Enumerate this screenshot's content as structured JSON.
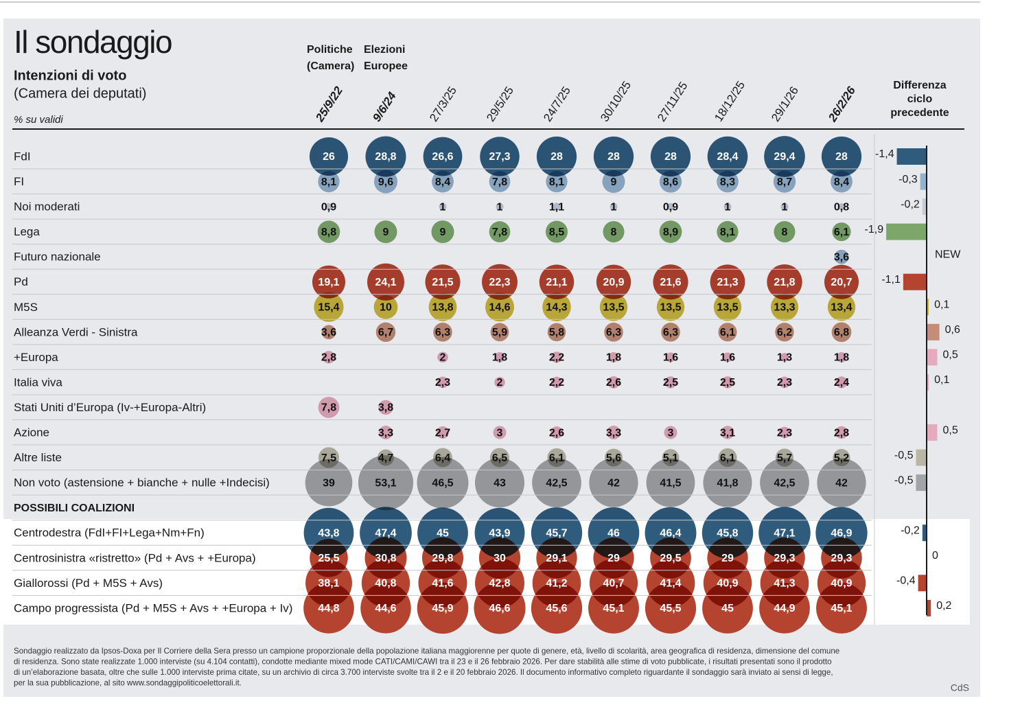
{
  "chart_data": {
    "type": "bubble_table",
    "title": "Il sondaggio",
    "subtitle": "Intenzioni di voto",
    "subtitle2": "(Camera dei deputati)",
    "unit_note": "% su validi",
    "column_notes": [
      [
        "Politiche",
        "(Camera)"
      ],
      [
        "Elezioni",
        "Europee"
      ]
    ],
    "columns": [
      "25/9/22",
      "9/6/24",
      "27/3/25",
      "29/5/25",
      "24/7/25",
      "30/10/25",
      "27/11/25",
      "18/12/25",
      "29/1/26",
      "26/2/26"
    ],
    "bold_columns": [
      0,
      1,
      9
    ],
    "diff_title": [
      "Differenza",
      "ciclo",
      "precedente"
    ],
    "xlim": [
      -2,
      2
    ],
    "rows": [
      {
        "name": "FdI",
        "color": "#2f5b7c",
        "values": [
          26,
          28.8,
          26.6,
          27.3,
          28,
          28,
          28,
          28.4,
          29.4,
          28
        ],
        "value_labels": [
          "26",
          "28,8",
          "26,6",
          "27,3",
          "28",
          "28",
          "28",
          "28,4",
          "29,4",
          "28"
        ],
        "diff": -1.4,
        "diff_label": "-1,4"
      },
      {
        "name": "FI",
        "color": "#93b1cb",
        "values": [
          8.1,
          9.6,
          8.4,
          7.8,
          8.1,
          9,
          8.6,
          8.3,
          8.7,
          8.4
        ],
        "value_labels": [
          "8,1",
          "9,6",
          "8,4",
          "7,8",
          "8,1",
          "9",
          "8,6",
          "8,3",
          "8,7",
          "8,4"
        ],
        "diff": -0.3,
        "diff_label": "-0,3"
      },
      {
        "name": "Noi moderati",
        "color": "#c3cbd6",
        "values": [
          0.9,
          null,
          1,
          1,
          1.1,
          1,
          0.9,
          1,
          1,
          0.8
        ],
        "value_labels": [
          "0,9",
          null,
          "1",
          "1",
          "1,1",
          "1",
          "0,9",
          "1",
          "1",
          "0,8"
        ],
        "diff": -0.2,
        "diff_label": "-0,2"
      },
      {
        "name": "Lega",
        "color": "#7da66b",
        "values": [
          8.8,
          9,
          9,
          7.8,
          8.5,
          8,
          8.9,
          8.1,
          8,
          6.1
        ],
        "value_labels": [
          "8,8",
          "9",
          "9",
          "7,8",
          "8,5",
          "8",
          "8,9",
          "8,1",
          "8",
          "6,1"
        ],
        "diff": -1.9,
        "diff_label": "-1,9"
      },
      {
        "name": "Futuro nazionale",
        "color": "#93b1cb",
        "values": [
          null,
          null,
          null,
          null,
          null,
          null,
          null,
          null,
          null,
          3.6
        ],
        "value_labels": [
          null,
          null,
          null,
          null,
          null,
          null,
          null,
          null,
          null,
          "3,6"
        ],
        "diff": null,
        "diff_label": "NEW"
      },
      {
        "name": "Pd",
        "color": "#b4432f",
        "values": [
          19.1,
          24.1,
          21.5,
          22.3,
          21.1,
          20.9,
          21.6,
          21.3,
          21.8,
          20.7
        ],
        "value_labels": [
          "19,1",
          "24,1",
          "21,5",
          "22,3",
          "21,1",
          "20,9",
          "21,6",
          "21,3",
          "21,8",
          "20,7"
        ],
        "diff": -1.1,
        "diff_label": "-1,1"
      },
      {
        "name": "M5S",
        "color": "#cbb63c",
        "values": [
          15.4,
          10,
          13.8,
          14.6,
          14.3,
          13.5,
          13.5,
          13.5,
          13.3,
          13.4
        ],
        "value_labels": [
          "15,4",
          "10",
          "13,8",
          "14,6",
          "14,3",
          "13,5",
          "13,5",
          "13,5",
          "13,3",
          "13,4"
        ],
        "diff": 0.1,
        "diff_label": "0,1"
      },
      {
        "name": "Alleanza Verdi - Sinistra",
        "color": "#c38d77",
        "values": [
          3.6,
          6.7,
          6.3,
          5.9,
          5.8,
          6.3,
          6.3,
          6.1,
          6.2,
          6.8
        ],
        "value_labels": [
          "3,6",
          "6,7",
          "6,3",
          "5,9",
          "5,8",
          "6,3",
          "6,3",
          "6,1",
          "6,2",
          "6,8"
        ],
        "diff": 0.6,
        "diff_label": "0,6"
      },
      {
        "name": "+Europa",
        "color": "#e5aabb",
        "values": [
          2.8,
          null,
          2,
          1.8,
          2.2,
          1.8,
          1.6,
          1.6,
          1.3,
          1.8
        ],
        "value_labels": [
          "2,8",
          null,
          "2",
          "1,8",
          "2,2",
          "1,8",
          "1,6",
          "1,6",
          "1,3",
          "1,8"
        ],
        "diff": 0.5,
        "diff_label": "0,5"
      },
      {
        "name": "Italia viva",
        "color": "#e5aabb",
        "values": [
          null,
          null,
          2.3,
          2,
          2.2,
          2.6,
          2.5,
          2.5,
          2.3,
          2.4
        ],
        "value_labels": [
          null,
          null,
          "2,3",
          "2",
          "2,2",
          "2,6",
          "2,5",
          "2,5",
          "2,3",
          "2,4"
        ],
        "diff": 0.1,
        "diff_label": "0,1"
      },
      {
        "name": "Stati Uniti d’Europa (Iv-+Europa-Altri)",
        "color": "#e5aabb",
        "values": [
          7.8,
          3.8,
          null,
          null,
          null,
          null,
          null,
          null,
          null,
          null
        ],
        "value_labels": [
          "7,8",
          "3,8",
          null,
          null,
          null,
          null,
          null,
          null,
          null,
          null
        ],
        "diff": null,
        "diff_label": null
      },
      {
        "name": "Azione",
        "color": "#e5aabb",
        "values": [
          null,
          3.3,
          2.7,
          3,
          2.6,
          3.3,
          3,
          3.1,
          2.3,
          2.8
        ],
        "value_labels": [
          null,
          "3,3",
          "2,7",
          "3",
          "2,6",
          "3,3",
          "3",
          "3,1",
          "2,3",
          "2,8"
        ],
        "diff": 0.5,
        "diff_label": "0,5"
      },
      {
        "name": "Altre liste",
        "color": "#bab6a6",
        "values": [
          7.5,
          4.7,
          6.4,
          6.5,
          6.1,
          5.6,
          5.1,
          6.1,
          5.7,
          5.2
        ],
        "value_labels": [
          "7,5",
          "4,7",
          "6,4",
          "6,5",
          "6,1",
          "5,6",
          "5,1",
          "6,1",
          "5,7",
          "5,2"
        ],
        "diff": -0.5,
        "diff_label": "-0,5"
      },
      {
        "name": "Non voto (astensione + bianche + nulle +Indecisi)",
        "color": "#a3a4a6",
        "values": [
          39,
          53.1,
          46.5,
          43,
          42.5,
          42,
          41.5,
          41.8,
          42.5,
          42
        ],
        "value_labels": [
          "39",
          "53,1",
          "46,5",
          "43",
          "42,5",
          "42",
          "41,5",
          "41,8",
          "42,5",
          "42"
        ],
        "diff": -0.5,
        "diff_label": "-0,5"
      }
    ],
    "section_title": "POSSIBILI COALIZIONI",
    "coalitions": [
      {
        "name": "Centrodestra (FdI+FI+Lega+Nm+Fn)",
        "color": "#2f5b7c",
        "values": [
          43.8,
          47.4,
          45,
          43.9,
          45.7,
          46,
          46.4,
          45.8,
          47.1,
          46.9
        ],
        "value_labels": [
          "43,8",
          "47,4",
          "45",
          "43,9",
          "45,7",
          "46",
          "46,4",
          "45,8",
          "47,1",
          "46,9"
        ],
        "diff": -0.2,
        "diff_label": "-0,2"
      },
      {
        "name": "Centrosinistra «ristretto» (Pd + Avs + +Europa)",
        "color": "#b4432f",
        "values": [
          25.5,
          30.8,
          29.8,
          30,
          29.1,
          29,
          29.5,
          29,
          29.3,
          29.3
        ],
        "value_labels": [
          "25,5",
          "30,8",
          "29,8",
          "30",
          "29,1",
          "29",
          "29,5",
          "29",
          "29,3",
          "29,3"
        ],
        "diff": 0,
        "diff_label": "0"
      },
      {
        "name": "Giallorossi (Pd + M5S + Avs)",
        "color": "#b4432f",
        "values": [
          38.1,
          40.8,
          41.6,
          42.8,
          41.2,
          40.7,
          41.4,
          40.9,
          41.3,
          40.9
        ],
        "value_labels": [
          "38,1",
          "40,8",
          "41,6",
          "42,8",
          "41,2",
          "40,7",
          "41,4",
          "40,9",
          "41,3",
          "40,9"
        ],
        "diff": -0.4,
        "diff_label": "-0,4"
      },
      {
        "name": "Campo progressista (Pd + M5S + Avs + +Europa + Iv)",
        "color": "#b4432f",
        "values": [
          44.8,
          44.6,
          45.9,
          46.6,
          45.6,
          45.1,
          45.5,
          45,
          44.9,
          45.1
        ],
        "value_labels": [
          "44,8",
          "44,6",
          "45,9",
          "46,6",
          "45,6",
          "45,1",
          "45,5",
          "45",
          "44,9",
          "45,1"
        ],
        "diff": 0.2,
        "diff_label": "0,2"
      }
    ],
    "footer": [
      "Sondaggio realizzato da Ipsos-Doxa per Il Corriere della Sera presso un campione proporzionale della popolazione italiana maggiorenne per quote di genere, età, livello di scolarità, area geografica di residenza, dimensione del comune",
      "di residenza. Sono state realizzate 1.000 interviste (su 4.104 contatti), condotte mediante mixed mode CATI/CAMI/CAWI tra il 23 e il 26 febbraio 2026. Per dare stabilità alle stime di voto pubblicate, i risultati presentati sono il prodotto",
      "di un’elaborazione basata, oltre che sulle 1.000 interviste prima citate, su un archivio di circa 3.700  interviste svolte tra il 2 e il 20 febbraio  2026. Il documento informativo completo riguardante il sondaggio sarà inviato ai sensi di legge,",
      "per la sua pubblicazione, al sito www.sondaggipoliticoelettorali.it."
    ],
    "credit": "CdS"
  }
}
